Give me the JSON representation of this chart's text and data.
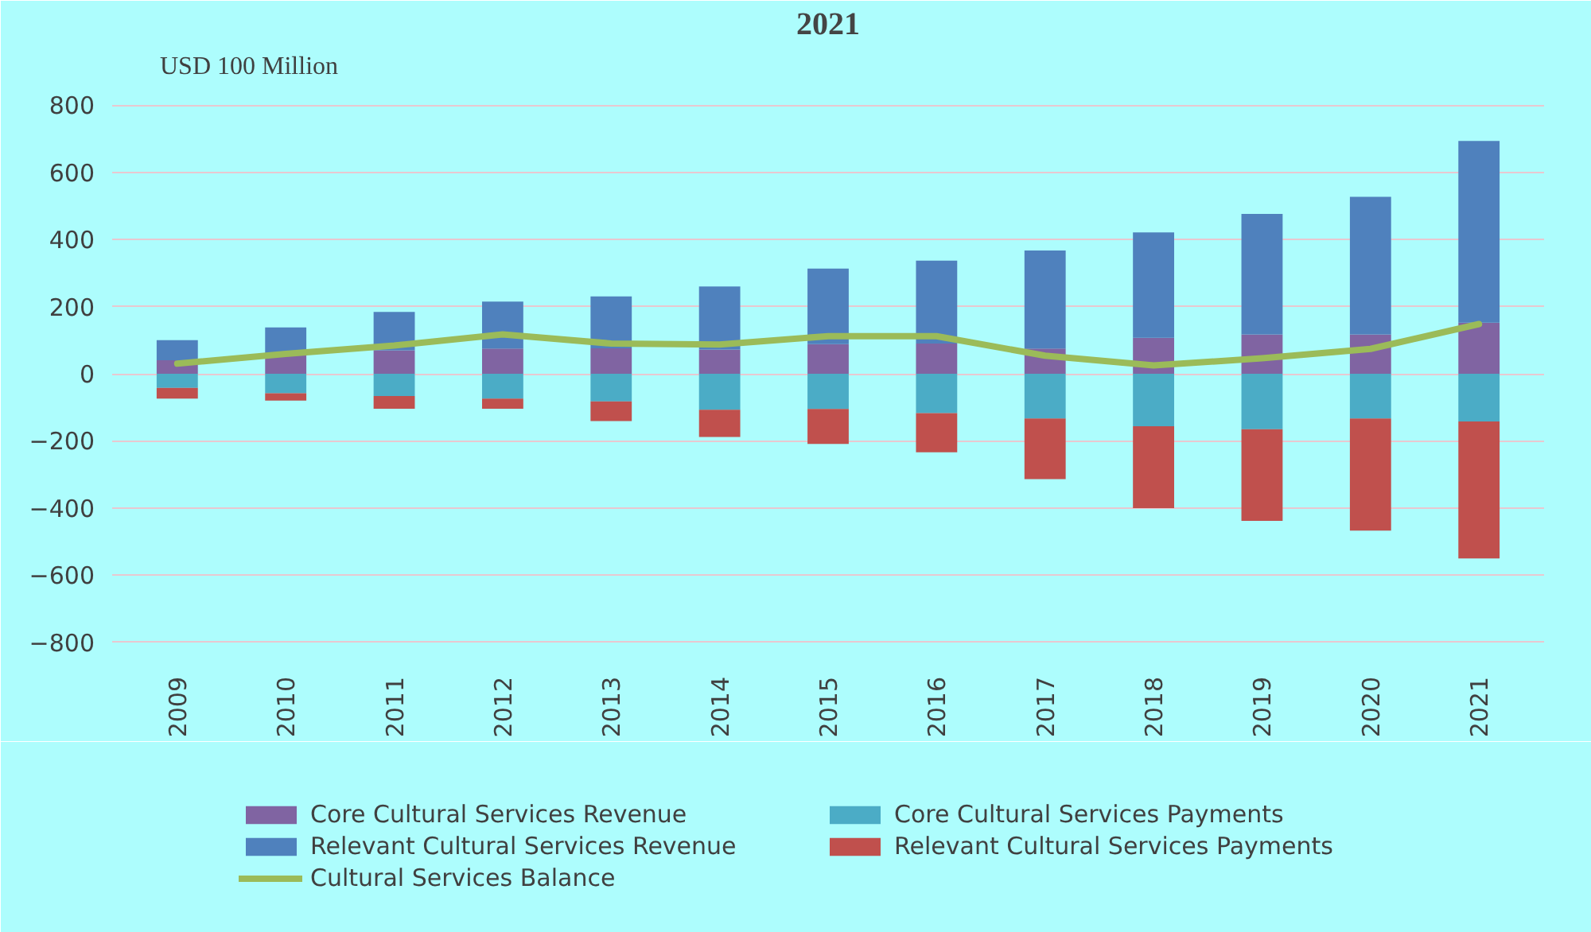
{
  "chart_data": {
    "type": "bar",
    "stacked": true,
    "title": "2021",
    "ylabel": "USD 100 Million",
    "categories": [
      "2009",
      "2010",
      "2011",
      "2012",
      "2013",
      "2014",
      "2015",
      "2016",
      "2017",
      "2018",
      "2019",
      "2020",
      "2021"
    ],
    "ylim": [
      -850,
      850
    ],
    "yticks": [
      -800,
      -600,
      -400,
      -200,
      0,
      200,
      400,
      600,
      800
    ],
    "grid": "y",
    "legend": "bottom",
    "series": [
      {
        "name": "Core Cultural Services Revenue",
        "color": "#8064a2",
        "values": [
          40,
          55,
          70,
          75,
          76,
          72,
          88,
          90,
          75,
          107,
          117,
          117,
          152
        ]
      },
      {
        "name": "Core Cultural Services Payments",
        "color": "#4bacc6",
        "values": [
          -42,
          -58,
          -66,
          -74,
          -82,
          -107,
          -105,
          -117,
          -133,
          -156,
          -165,
          -133,
          -142
        ]
      },
      {
        "name": "Relevant Cultural Services Revenue",
        "color": "#4f81bd",
        "values": [
          60,
          83,
          114,
          140,
          154,
          188,
          225,
          247,
          292,
          314,
          359,
          410,
          541
        ]
      },
      {
        "name": "Relevant Cultural Services Payments",
        "color": "#c0504d",
        "values": [
          -32,
          -22,
          -38,
          -30,
          -59,
          -81,
          -104,
          -117,
          -181,
          -244,
          -273,
          -334,
          -408
        ]
      },
      {
        "name": "Cultural Services Balance",
        "type": "line",
        "color": "#9bbb59",
        "values": [
          30,
          59,
          84,
          117,
          90,
          87,
          112,
          112,
          54,
          25,
          46,
          74,
          148
        ]
      }
    ]
  }
}
